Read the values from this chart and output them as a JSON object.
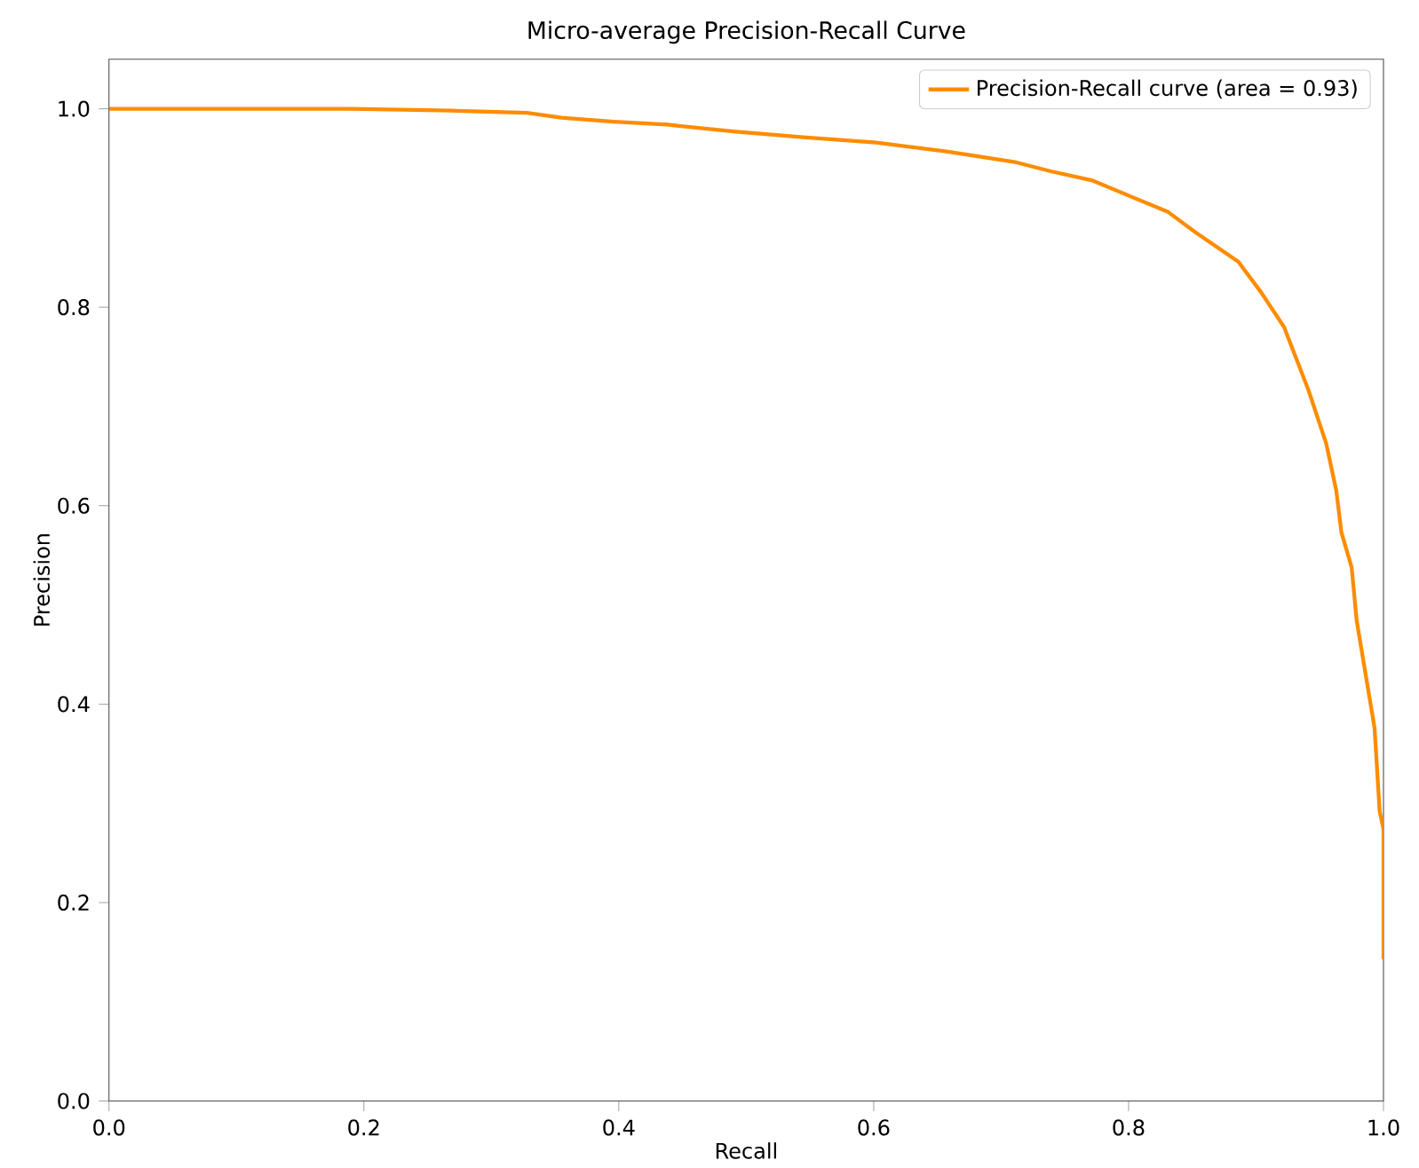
{
  "chart_data": {
    "type": "line",
    "title": "Micro-average Precision-Recall Curve",
    "xlabel": "Recall",
    "ylabel": "Precision",
    "xlim": [
      0,
      1
    ],
    "ylim": [
      0,
      1.05
    ],
    "xticks": [
      {
        "value": 0,
        "label": "0.0"
      },
      0.2,
      0.4,
      0.6,
      0.8,
      {
        "value": 1,
        "label": "1.0"
      }
    ],
    "yticks": [
      {
        "value": 0,
        "label": "0.0"
      },
      0.2,
      0.4,
      0.6,
      0.8,
      {
        "value": 1,
        "label": "1.0"
      }
    ],
    "grid": false,
    "legend": "top right",
    "marker": "none",
    "line_style": "solid",
    "series": [
      {
        "name": "Precision-Recall curve (area = 0.93)",
        "color": "#ff8c00",
        "x": [
          0,
          0.19,
          0.273,
          0.328,
          0.355,
          0.396,
          0.438,
          0.492,
          0.547,
          0.602,
          0.657,
          0.712,
          0.739,
          0.771,
          0.831,
          0.853,
          0.886,
          0.904,
          0.922,
          0.941,
          0.955,
          0.963,
          0.967,
          0.975,
          0.979,
          0.986,
          0.993,
          0.997,
          1.0,
          1.0
        ],
        "values": [
          1.0,
          1.0,
          0.998,
          0.996,
          0.991,
          0.987,
          0.984,
          0.977,
          0.971,
          0.966,
          0.957,
          0.946,
          0.937,
          0.928,
          0.896,
          0.875,
          0.846,
          0.815,
          0.78,
          0.717,
          0.663,
          0.615,
          0.573,
          0.538,
          0.484,
          0.43,
          0.376,
          0.292,
          0.274,
          0.143
        ]
      }
    ]
  }
}
